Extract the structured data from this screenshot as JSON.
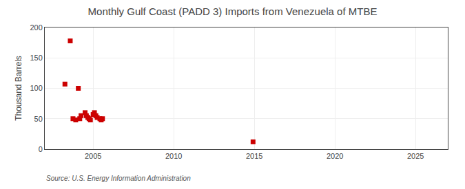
{
  "chart_data": {
    "type": "scatter",
    "title": "Monthly Gulf Coast (PADD 3) Imports from Venezuela of MTBE",
    "ylabel": "Thousand Barrels",
    "source": "Source: U.S. Energy Information Administration",
    "x": [
      2003.25,
      2003.58,
      2003.75,
      2003.92,
      2004.08,
      2004.17,
      2004.25,
      2004.5,
      2004.58,
      2004.67,
      2004.75,
      2004.83,
      2005.0,
      2005.08,
      2005.17,
      2005.25,
      2005.42,
      2005.5,
      2005.58,
      2014.92
    ],
    "values": [
      107,
      178,
      50,
      48,
      100,
      50,
      55,
      60,
      55,
      52,
      50,
      48,
      57,
      60,
      55,
      52,
      50,
      48,
      50,
      12
    ],
    "color": "#cc0000",
    "marker": "square",
    "xlim": [
      2002,
      2027
    ],
    "ylim": [
      0,
      200
    ],
    "xticks": [
      2005,
      2010,
      2015,
      2020,
      2025
    ],
    "yticks": [
      0,
      50,
      100,
      150,
      200
    ],
    "grid": true
  }
}
